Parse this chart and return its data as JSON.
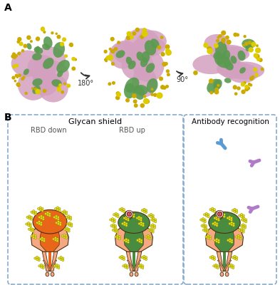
{
  "bg_color": "#ffffff",
  "panel_a_label": "A",
  "panel_b_label": "B",
  "rotation_180": "180°",
  "rotation_90": "90°",
  "glycan_shield_title": "Glycan shield",
  "rbd_down_label": "RBD down",
  "rbd_up_label": "RBD up",
  "antibody_title": "Antibody recognition",
  "skin_color": "#F5A882",
  "orange_rbd": "#E8651A",
  "green_protein": "#4A8C3F",
  "yellow_glycan": "#E8E020",
  "yellow_outline": "#999900",
  "blue_antibody": "#5B9BD5",
  "purple_antibody": "#B07BC8",
  "red_target_outer": "#CC2222",
  "dark_outline": "#4A3010",
  "box_dash_color": "#88AACC",
  "pink_protein": "#D4A0C0",
  "gold_glycan": "#CCAA00"
}
